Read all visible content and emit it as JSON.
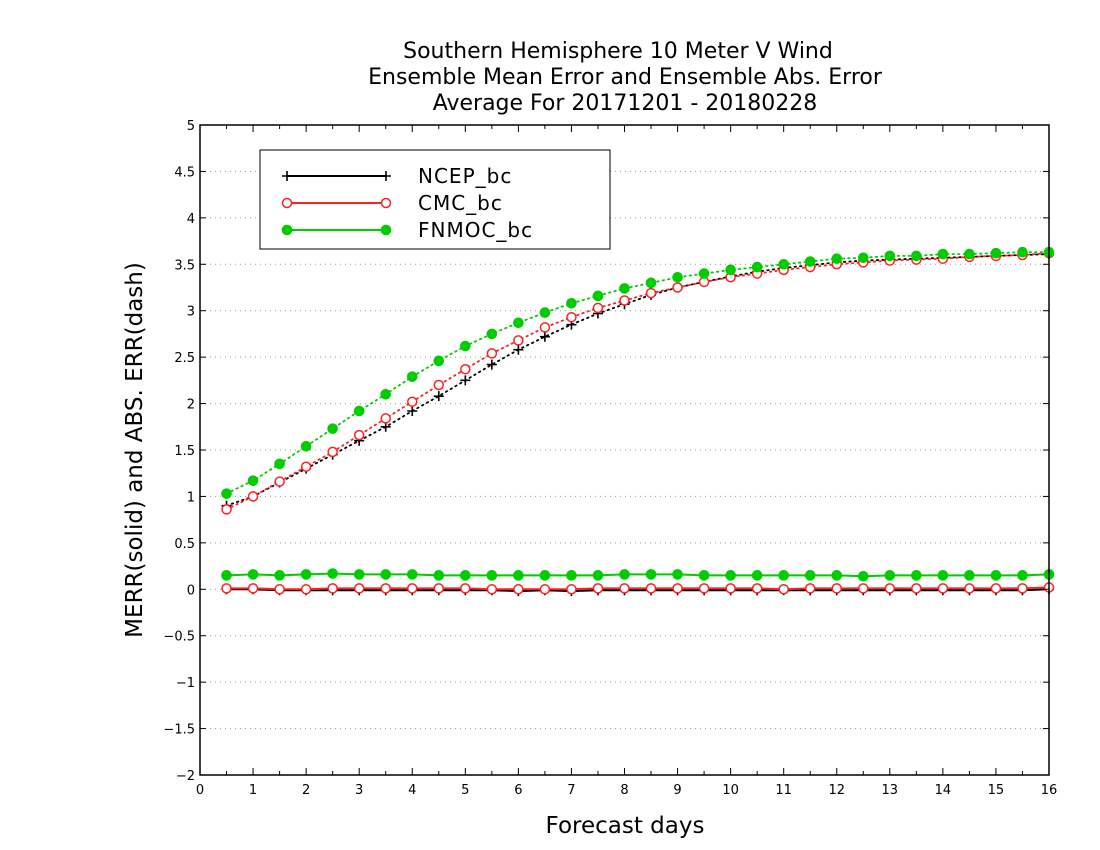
{
  "chart_data": {
    "type": "line",
    "title_lines": [
      "Southern Hemisphere 10 Meter V Wind",
      "Ensemble Mean Error and Ensemble Abs. Error",
      "Average For 20171201 - 20180228"
    ],
    "xlabel": "Forecast days",
    "ylabel": "MERR(solid) and ABS. ERR(dash)",
    "xlim": [
      0,
      16
    ],
    "ylim": [
      -2,
      5
    ],
    "x_ticks": [
      "0",
      "1",
      "2",
      "3",
      "4",
      "5",
      "6",
      "7",
      "8",
      "9",
      "10",
      "11",
      "12",
      "13",
      "14",
      "15",
      "16"
    ],
    "y_ticks": [
      "5",
      "4.5",
      "4",
      "3.5",
      "3",
      "2.5",
      "2",
      "1.5",
      "1",
      "0.5",
      "0",
      "−0.5",
      "−1",
      "−1.5",
      "−2"
    ],
    "grid": "horizontal dotted",
    "legend_position": "top-left",
    "x": [
      0.5,
      1,
      1.5,
      2,
      2.5,
      3,
      3.5,
      4,
      4.5,
      5,
      5.5,
      6,
      6.5,
      7,
      7.5,
      8,
      8.5,
      9,
      9.5,
      10,
      10.5,
      11,
      11.5,
      12,
      12.5,
      13,
      13.5,
      14,
      14.5,
      15,
      15.5,
      16
    ],
    "series": [
      {
        "name": "NCEP_bc",
        "color": "#000000",
        "marker": "plus",
        "abs_err": [
          0.9,
          1.0,
          1.15,
          1.3,
          1.45,
          1.6,
          1.75,
          1.92,
          2.08,
          2.25,
          2.42,
          2.58,
          2.72,
          2.85,
          2.97,
          3.07,
          3.17,
          3.25,
          3.31,
          3.37,
          3.42,
          3.46,
          3.49,
          3.52,
          3.54,
          3.55,
          3.56,
          3.57,
          3.58,
          3.59,
          3.6,
          3.61
        ],
        "mean_err": [
          0.0,
          0.0,
          -0.01,
          -0.01,
          -0.01,
          -0.01,
          -0.01,
          -0.01,
          -0.01,
          -0.01,
          -0.01,
          -0.02,
          -0.01,
          -0.02,
          -0.01,
          -0.01,
          -0.01,
          -0.01,
          -0.01,
          -0.01,
          -0.01,
          -0.01,
          -0.01,
          -0.01,
          -0.01,
          -0.01,
          -0.01,
          -0.01,
          -0.01,
          -0.01,
          -0.01,
          0.0
        ]
      },
      {
        "name": "CMC_bc",
        "color": "#ff2020",
        "marker": "open-circle",
        "abs_err": [
          0.86,
          1.0,
          1.16,
          1.32,
          1.48,
          1.66,
          1.84,
          2.02,
          2.2,
          2.37,
          2.54,
          2.68,
          2.82,
          2.93,
          3.03,
          3.11,
          3.19,
          3.25,
          3.31,
          3.36,
          3.4,
          3.44,
          3.47,
          3.5,
          3.52,
          3.54,
          3.55,
          3.56,
          3.58,
          3.59,
          3.6,
          3.62
        ],
        "mean_err": [
          0.01,
          0.01,
          0.0,
          0.0,
          0.01,
          0.01,
          0.01,
          0.01,
          0.01,
          0.01,
          0.0,
          0.0,
          0.0,
          0.0,
          0.01,
          0.01,
          0.01,
          0.01,
          0.01,
          0.01,
          0.01,
          0.0,
          0.01,
          0.01,
          0.01,
          0.01,
          0.01,
          0.01,
          0.01,
          0.01,
          0.01,
          0.02
        ]
      },
      {
        "name": "FNMOC_bc",
        "color": "#00cc00",
        "marker": "filled-circle",
        "abs_err": [
          1.03,
          1.17,
          1.35,
          1.54,
          1.73,
          1.92,
          2.1,
          2.29,
          2.46,
          2.62,
          2.75,
          2.87,
          2.98,
          3.08,
          3.16,
          3.24,
          3.3,
          3.36,
          3.4,
          3.44,
          3.47,
          3.5,
          3.53,
          3.56,
          3.57,
          3.59,
          3.59,
          3.61,
          3.61,
          3.62,
          3.63,
          3.63
        ],
        "mean_err": [
          0.15,
          0.16,
          0.15,
          0.16,
          0.17,
          0.16,
          0.16,
          0.16,
          0.15,
          0.15,
          0.15,
          0.15,
          0.15,
          0.15,
          0.15,
          0.16,
          0.16,
          0.16,
          0.15,
          0.15,
          0.15,
          0.15,
          0.15,
          0.15,
          0.14,
          0.15,
          0.15,
          0.15,
          0.15,
          0.15,
          0.15,
          0.16
        ]
      }
    ]
  }
}
